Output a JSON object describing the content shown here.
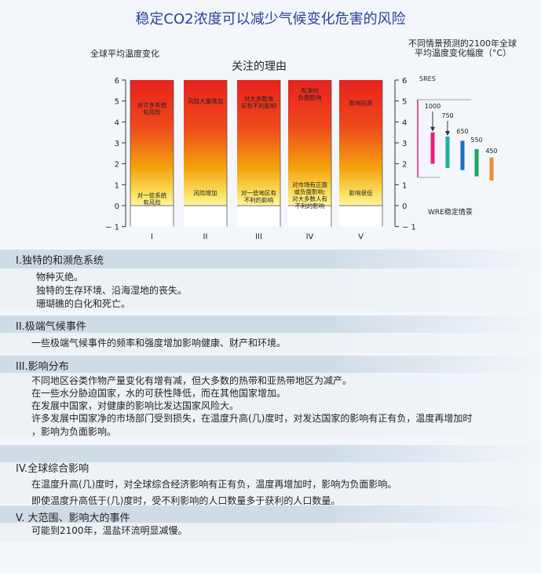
{
  "title": "稳定CO2浓度可以减少气候变化危害的风险",
  "left_label": "全球平均温度变化",
  "center_title": "关注的理由",
  "right_title_line1": "不同情景预测的2100年全球",
  "right_title_line2": "平均温度变化幅度（°C）",
  "chart_data": [
    {
      "type": "bar",
      "ylim": [
        -1,
        6
      ],
      "y_ticks": [
        "6",
        "5",
        "4",
        "3",
        "2",
        "1",
        "0",
        "− 1"
      ],
      "categories": [
        "I",
        "II",
        "III",
        "IV",
        "V"
      ],
      "bars": [
        {
          "category": "I",
          "top_label": "对许多系统\n有风险",
          "bottom_label": "对一些系统\n有风险",
          "top_label_y": 4.7,
          "bottom_label_y": 0.4
        },
        {
          "category": "II",
          "top_label": "风险大量增加",
          "bottom_label": "风险增加",
          "top_label_y": 4.9,
          "bottom_label_y": 0.5
        },
        {
          "category": "III",
          "top_label": "对大多数地\n区有不利影响",
          "bottom_label": "对一些地区有\n不利的影响",
          "top_label_y": 5.0,
          "bottom_label_y": 0.5
        },
        {
          "category": "IV",
          "top_label": "有净的\n负面影响",
          "bottom_label": "对市场有正面\n或负面影响;\n对大多数人有\n不利的影响",
          "top_label_y": 5.4,
          "bottom_label_y": 0.9
        },
        {
          "category": "V",
          "top_label": "影响较高",
          "bottom_label": "影响很低",
          "top_label_y": 4.8,
          "bottom_label_y": 0.5
        }
      ],
      "colors": {
        "high": "#e8211f",
        "mid": "#f3a20c",
        "low": "#fbe868",
        "base": "#ffffff"
      }
    },
    {
      "type": "range",
      "y_ticks": [
        "6",
        "5",
        "4",
        "3",
        "2",
        "1",
        "0",
        "− 1"
      ],
      "series_group_label": "SRES",
      "footer_label": "WRE稳定情景",
      "ranges": [
        {
          "name": "1000",
          "low": 2.0,
          "high": 3.5,
          "color": "#e8207a"
        },
        {
          "name": "750",
          "low": 1.8,
          "high": 3.3,
          "color": "#1fae9e"
        },
        {
          "name": "650",
          "low": 1.7,
          "high": 3.1,
          "color": "#1d6fc0"
        },
        {
          "name": "550",
          "low": 1.4,
          "high": 2.7,
          "color": "#17a85e"
        },
        {
          "name": "450",
          "low": 1.2,
          "high": 2.3,
          "color": "#f08a3c"
        }
      ]
    }
  ],
  "sections": [
    {
      "title": "I.独特的和濒危系统",
      "items": [
        "物种灭绝。",
        "独特的生存环境、沿海湿地的丧失。",
        "珊瑚礁的白化和死亡。"
      ]
    },
    {
      "title": "II.极端气候事件",
      "items": [
        "一些极端气候事件的频率和强度增加影响健康、财产和环境。"
      ]
    },
    {
      "title": "III.影响分布",
      "items": [
        "不同地区谷类作物产量变化有增有减，但大多数的热带和亚热带地区为减产。",
        "在一些水分胁迫国家，水的可获性降低，而在其他国家增加。",
        "在发展中国家，对健康的影响比发达国家风险大。",
        "许多发展中国家净的市场部门受到损失，在温度升高(几)度时，对发达国家的影响有正有负，温度再增加时",
        "，影响为负面影响。"
      ]
    },
    {
      "title": "IV.全球综合影响",
      "items": [
        "在温度升高(几)度时，对全球综合经济影响有正有负，温度再增加时，影响为负面影响。",
        "即使温度升高低于(几)度时，受不利影响的人口数量多于获利的人口数量。"
      ]
    },
    {
      "title": "V. 大范围、影响大的事件",
      "items": [
        "可能到2100年，温盐环流明显减慢。"
      ]
    }
  ]
}
